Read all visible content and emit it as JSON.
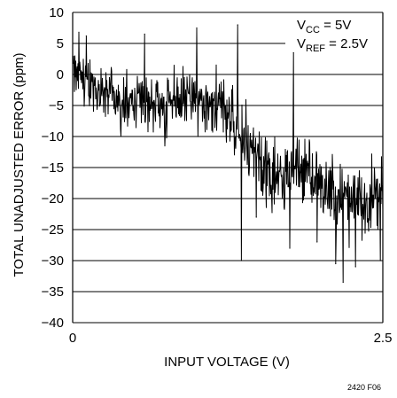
{
  "chart_data": {
    "type": "line",
    "title": "",
    "xlabel": "INPUT VOLTAGE (V)",
    "ylabel": "TOTAL UNADJUSTED ERROR (ppm)",
    "xlim": [
      0,
      2.5
    ],
    "ylim": [
      -40,
      10
    ],
    "x_ticks": [
      0,
      2.5
    ],
    "x_tick_labels": [
      "0",
      "2.5"
    ],
    "y_ticks": [
      10,
      5,
      0,
      -5,
      -10,
      -15,
      -20,
      -25,
      -30,
      -35,
      -40
    ],
    "y_tick_labels": [
      "10",
      "5",
      "0",
      "−5",
      "−10",
      "−15",
      "−20",
      "−25",
      "−30",
      "−35",
      "−40"
    ],
    "grid": "horizontal",
    "annotations": [
      {
        "base": "V",
        "sub": "CC",
        "rest": " = 5V"
      },
      {
        "base": "V",
        "sub": "REF",
        "rest": " = 2.5V"
      }
    ],
    "series": [
      {
        "values_description": "",
        "x": [
          0.0,
          0.1,
          0.2,
          0.3,
          0.4,
          0.5,
          0.6,
          0.7,
          0.8,
          0.9,
          1.0,
          1.1,
          1.2,
          1.3,
          1.4,
          1.5,
          1.6,
          1.7,
          1.8,
          1.9,
          2.0,
          2.1,
          2.2,
          2.3,
          2.4,
          2.5
        ],
        "y": [
          1.5,
          -1.0,
          -2.5,
          -3.0,
          -4.0,
          -4.5,
          -4.5,
          -5.0,
          -4.5,
          -4.0,
          -3.0,
          -4.5,
          -5.5,
          -7.0,
          -10.0,
          -13.0,
          -16.0,
          -16.5,
          -15.0,
          -15.5,
          -17.5,
          -18.5,
          -19.5,
          -20.0,
          -20.0,
          -21.0
        ],
        "noise_amplitude": [
          4.5,
          4.0,
          4.0,
          4.0,
          4.0,
          4.0,
          4.0,
          4.0,
          4.0,
          4.0,
          4.0,
          4.0,
          4.5,
          5.0,
          5.0,
          5.0,
          5.0,
          5.0,
          5.0,
          5.0,
          5.0,
          5.0,
          5.0,
          5.0,
          5.0,
          5.0
        ],
        "spikes": [
          {
            "x": 0.05,
            "y": 6.8
          },
          {
            "x": 0.11,
            "y": 6.2
          },
          {
            "x": 0.58,
            "y": 6.5
          },
          {
            "x": 1.0,
            "y": 7.5
          },
          {
            "x": 1.01,
            "y": -10.0
          },
          {
            "x": 1.33,
            "y": 8.0
          },
          {
            "x": 1.36,
            "y": -30.0
          },
          {
            "x": 1.48,
            "y": -23.0
          },
          {
            "x": 1.75,
            "y": -28.0
          },
          {
            "x": 1.78,
            "y": 3.5
          },
          {
            "x": 1.97,
            "y": -27.0
          },
          {
            "x": 2.12,
            "y": -30.5
          },
          {
            "x": 2.18,
            "y": -33.5
          },
          {
            "x": 2.28,
            "y": -31.0
          },
          {
            "x": 2.48,
            "y": -30.0
          }
        ]
      }
    ],
    "figure_id": "2420 F06"
  }
}
